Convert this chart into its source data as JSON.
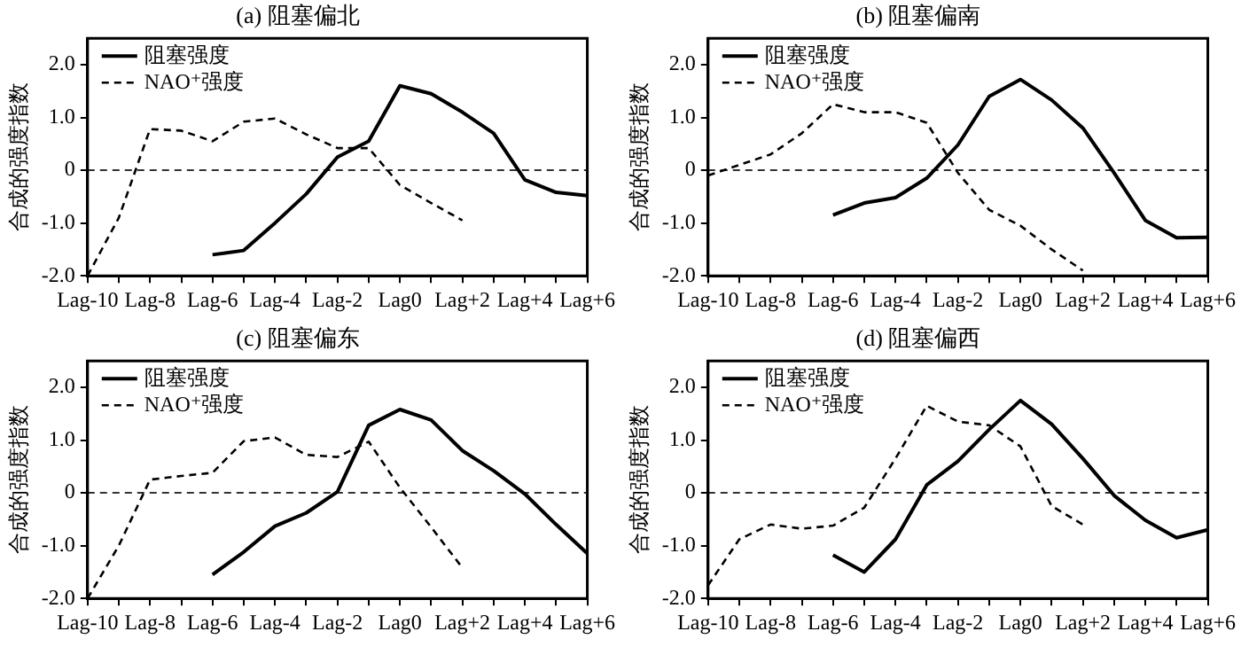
{
  "chart_data": [
    {
      "type": "line",
      "title": "(a) 阻塞偏北",
      "ylabel": "合成的强度指数",
      "legend": "top left",
      "grid": false,
      "categories": [
        "Lag-10",
        null,
        "Lag-8",
        null,
        "Lag-6",
        null,
        "Lag-4",
        null,
        "Lag-2",
        null,
        "Lag0",
        null,
        "Lag+2",
        null,
        "Lag+4",
        null,
        "Lag+6"
      ],
      "ylim": [
        -2,
        2.5
      ],
      "yticks": [
        {
          "value": -2,
          "label": "-2.0"
        },
        {
          "value": -1,
          "label": "-1.0"
        },
        {
          "value": 0,
          "label": "0"
        },
        {
          "value": 1,
          "label": "1.0"
        },
        {
          "value": 2,
          "label": "2.0"
        }
      ],
      "ref_lines": [
        {
          "axis": "y",
          "value": 0,
          "line_style": "dashed",
          "color": "#333333"
        }
      ],
      "series": [
        {
          "name": "阻塞强度",
          "color": "#000000",
          "line_style": "solid",
          "values": [
            null,
            null,
            null,
            null,
            -1.6,
            -1.52,
            -1.0,
            -0.45,
            0.25,
            0.55,
            1.6,
            1.45,
            1.1,
            0.7,
            -0.18,
            -0.42,
            -0.48
          ]
        },
        {
          "name": "NAO⁺强度",
          "color": "#000000",
          "line_style": "dashed",
          "values": [
            -2.0,
            -0.9,
            0.78,
            0.75,
            0.55,
            0.92,
            0.98,
            0.68,
            0.42,
            0.42,
            -0.28,
            -0.62,
            -0.95,
            null,
            null,
            null,
            null
          ]
        }
      ]
    },
    {
      "type": "line",
      "title": "(b) 阻塞偏南",
      "ylabel": "合成的强度指数",
      "legend": "top left",
      "grid": false,
      "categories": [
        "Lag-10",
        null,
        "Lag-8",
        null,
        "Lag-6",
        null,
        "Lag-4",
        null,
        "Lag-2",
        null,
        "Lag0",
        null,
        "Lag+2",
        null,
        "Lag+4",
        null,
        "Lag+6"
      ],
      "ylim": [
        -2,
        2.5
      ],
      "yticks": [
        {
          "value": -2,
          "label": "-2.0"
        },
        {
          "value": -1,
          "label": "-1.0"
        },
        {
          "value": 0,
          "label": "0"
        },
        {
          "value": 1,
          "label": "1.0"
        },
        {
          "value": 2,
          "label": "2.0"
        }
      ],
      "ref_lines": [
        {
          "axis": "y",
          "value": 0,
          "line_style": "dashed",
          "color": "#333333"
        }
      ],
      "series": [
        {
          "name": "阻塞强度",
          "color": "#000000",
          "line_style": "solid",
          "values": [
            null,
            null,
            null,
            null,
            -0.85,
            -0.62,
            -0.52,
            -0.15,
            0.48,
            1.4,
            1.72,
            1.33,
            0.8,
            -0.05,
            -0.95,
            -1.28,
            -1.27
          ]
        },
        {
          "name": "NAO⁺强度",
          "color": "#000000",
          "line_style": "dashed",
          "values": [
            -0.1,
            0.1,
            0.3,
            0.7,
            1.25,
            1.1,
            1.1,
            0.9,
            -0.05,
            -0.75,
            -1.05,
            -1.5,
            -1.9,
            null,
            null,
            null,
            null
          ]
        }
      ]
    },
    {
      "type": "line",
      "title": "(c) 阻塞偏东",
      "ylabel": "合成的强度指数",
      "legend": "top left",
      "grid": false,
      "categories": [
        "Lag-10",
        null,
        "Lag-8",
        null,
        "Lag-6",
        null,
        "Lag-4",
        null,
        "Lag-2",
        null,
        "Lag0",
        null,
        "Lag+2",
        null,
        "Lag+4",
        null,
        "Lag+6"
      ],
      "ylim": [
        -2,
        2.5
      ],
      "yticks": [
        {
          "value": -2,
          "label": "-2.0"
        },
        {
          "value": -1,
          "label": "-1.0"
        },
        {
          "value": 0,
          "label": "0"
        },
        {
          "value": 1,
          "label": "1.0"
        },
        {
          "value": 2,
          "label": "2.0"
        }
      ],
      "ref_lines": [
        {
          "axis": "y",
          "value": 0,
          "line_style": "dashed",
          "color": "#333333"
        }
      ],
      "series": [
        {
          "name": "阻塞强度",
          "color": "#000000",
          "line_style": "solid",
          "values": [
            null,
            null,
            null,
            null,
            -1.55,
            -1.12,
            -0.63,
            -0.38,
            0.02,
            1.28,
            1.58,
            1.38,
            0.8,
            0.42,
            -0.02,
            -0.6,
            -1.15
          ]
        },
        {
          "name": "NAO⁺强度",
          "color": "#000000",
          "line_style": "dashed",
          "values": [
            -2.0,
            -1.0,
            0.25,
            0.32,
            0.38,
            0.98,
            1.05,
            0.72,
            0.68,
            0.97,
            0.1,
            -0.65,
            -1.42,
            null,
            null,
            null,
            null
          ]
        }
      ]
    },
    {
      "type": "line",
      "title": "(d) 阻塞偏西",
      "ylabel": "合成的强度指数",
      "legend": "top left",
      "grid": false,
      "categories": [
        "Lag-10",
        null,
        "Lag-8",
        null,
        "Lag-6",
        null,
        "Lag-4",
        null,
        "Lag-2",
        null,
        "Lag0",
        null,
        "Lag+2",
        null,
        "Lag+4",
        null,
        "Lag+6"
      ],
      "ylim": [
        -2,
        2.5
      ],
      "yticks": [
        {
          "value": -2,
          "label": "-2.0"
        },
        {
          "value": -1,
          "label": "-1.0"
        },
        {
          "value": 0,
          "label": "0"
        },
        {
          "value": 1,
          "label": "1.0"
        },
        {
          "value": 2,
          "label": "2.0"
        }
      ],
      "ref_lines": [
        {
          "axis": "y",
          "value": 0,
          "line_style": "dashed",
          "color": "#333333"
        }
      ],
      "series": [
        {
          "name": "阻塞强度",
          "color": "#000000",
          "line_style": "solid",
          "values": [
            null,
            null,
            null,
            null,
            -1.18,
            -1.5,
            -0.88,
            0.15,
            0.6,
            1.2,
            1.75,
            1.3,
            0.65,
            -0.05,
            -0.52,
            -0.85,
            -0.7
          ]
        },
        {
          "name": "NAO⁺强度",
          "color": "#000000",
          "line_style": "dashed",
          "values": [
            -1.75,
            -0.88,
            -0.6,
            -0.68,
            -0.62,
            -0.28,
            0.65,
            1.65,
            1.35,
            1.28,
            0.88,
            -0.25,
            -0.6,
            null,
            null,
            null,
            null
          ]
        }
      ]
    }
  ]
}
